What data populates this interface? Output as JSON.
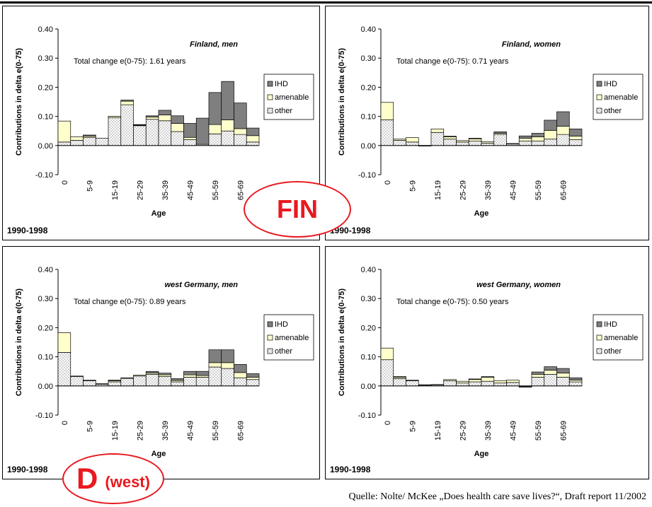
{
  "period_label": "1990-1998",
  "stamps": {
    "fin": "FIN",
    "d_main": "D",
    "d_sub": "(west)"
  },
  "source": "Quelle: Nolte/ McKee „Does health care save lives?“, Draft report 11/2002",
  "colors": {
    "ihd": "#7f7f7f",
    "amenable": "#ffffcc",
    "other_dots": "#9a9a9a",
    "stamp": "#e8191f"
  },
  "chart_data": [
    {
      "type": "bar",
      "stacked": true,
      "title": "Finland, men",
      "annotation": "Total change e(0-75): 1.61 years",
      "xlabel": "Age",
      "ylabel": "Contributions in delta e(0-75)",
      "ylim": [
        -0.1,
        0.4
      ],
      "yticks": [
        "-0.10",
        "0.00",
        "0.10",
        "0.20",
        "0.30",
        "0.40"
      ],
      "categories": [
        "0",
        "1-4",
        "5-9",
        "10-14",
        "15-19",
        "20-24",
        "25-29",
        "30-34",
        "35-39",
        "40-44",
        "45-49",
        "50-54",
        "55-59",
        "60-64",
        "65-69",
        "70-74"
      ],
      "tick_labels": [
        "0",
        "",
        "5-9",
        "",
        "15-19",
        "",
        "25-29",
        "",
        "35-39",
        "",
        "45-49",
        "",
        "55-59",
        "",
        "65-69",
        ""
      ],
      "legend": [
        "IHD",
        "amenable",
        "other"
      ],
      "legend_position": "right",
      "series": [
        {
          "name": "other",
          "values": [
            0.012,
            0.018,
            0.028,
            0.025,
            0.1,
            0.14,
            0.068,
            0.09,
            0.085,
            0.048,
            0.02,
            0.01,
            0.04,
            0.05,
            0.038,
            0.012
          ]
        },
        {
          "name": "amenable",
          "values": [
            0.072,
            0.012,
            0.004,
            0.0,
            -0.005,
            0.012,
            0.002,
            0.008,
            0.02,
            0.028,
            0.008,
            -0.006,
            0.032,
            0.038,
            0.02,
            0.022
          ]
        },
        {
          "name": "IHD",
          "values": [
            0.0,
            0.0,
            0.004,
            0.0,
            0.0,
            0.004,
            0.002,
            0.004,
            0.016,
            0.026,
            0.048,
            0.09,
            0.11,
            0.132,
            0.088,
            0.026
          ]
        }
      ]
    },
    {
      "type": "bar",
      "stacked": true,
      "title": "Finland, women",
      "annotation": "Total change e(0-75): 0.71 years",
      "xlabel": "Age",
      "ylabel": "Contributions in delta e(0-75)",
      "ylim": [
        -0.1,
        0.4
      ],
      "yticks": [
        "-0.10",
        "0.00",
        "0.10",
        "0.20",
        "0.30",
        "0.40"
      ],
      "categories": [
        "0",
        "1-4",
        "5-9",
        "10-14",
        "15-19",
        "20-24",
        "25-29",
        "30-34",
        "35-39",
        "40-44",
        "45-49",
        "50-54",
        "55-59",
        "60-64",
        "65-69",
        "70-74"
      ],
      "tick_labels": [
        "0",
        "",
        "5-9",
        "",
        "15-19",
        "",
        "25-29",
        "",
        "35-39",
        "",
        "45-49",
        "",
        "55-59",
        "",
        "65-69",
        ""
      ],
      "legend": [
        "IHD",
        "amenable",
        "other"
      ],
      "legend_position": "right",
      "series": [
        {
          "name": "other",
          "values": [
            0.088,
            0.018,
            0.012,
            -0.002,
            0.045,
            0.022,
            0.012,
            0.015,
            0.008,
            0.038,
            0.005,
            0.015,
            0.015,
            0.022,
            0.038,
            0.02
          ]
        },
        {
          "name": "amenable",
          "values": [
            0.06,
            0.004,
            0.015,
            0.0,
            0.012,
            0.008,
            0.005,
            0.008,
            0.005,
            0.004,
            0.002,
            0.01,
            0.015,
            0.03,
            0.028,
            0.012
          ]
        },
        {
          "name": "IHD",
          "values": [
            0.0,
            0.0,
            0.0,
            0.0,
            0.0,
            0.002,
            0.0,
            0.002,
            0.0,
            0.005,
            0.0,
            0.008,
            0.012,
            0.035,
            0.05,
            0.025
          ]
        }
      ]
    },
    {
      "type": "bar",
      "stacked": true,
      "title": "west Germany, men",
      "annotation": "Total change e(0-75): 0.89 years",
      "xlabel": "Age",
      "ylabel": "Contributions in delta e(0-75)",
      "ylim": [
        -0.1,
        0.4
      ],
      "yticks": [
        "-0.10",
        "0.00",
        "0.10",
        "0.20",
        "0.30",
        "0.40"
      ],
      "categories": [
        "0",
        "1-4",
        "5-9",
        "10-14",
        "15-19",
        "20-24",
        "25-29",
        "30-34",
        "35-39",
        "40-44",
        "45-49",
        "50-54",
        "55-59",
        "60-64",
        "65-69",
        "70-74"
      ],
      "tick_labels": [
        "0",
        "",
        "5-9",
        "",
        "15-19",
        "",
        "25-29",
        "",
        "35-39",
        "",
        "45-49",
        "",
        "55-59",
        "",
        "65-69",
        ""
      ],
      "legend": [
        "IHD",
        "amenable",
        "other"
      ],
      "legend_position": "right",
      "series": [
        {
          "name": "other",
          "values": [
            0.115,
            0.032,
            0.018,
            0.006,
            0.014,
            0.026,
            0.034,
            0.04,
            0.032,
            0.014,
            0.03,
            0.03,
            0.065,
            0.06,
            0.028,
            0.022
          ]
        },
        {
          "name": "amenable",
          "values": [
            0.068,
            0.002,
            0.002,
            0.002,
            0.004,
            0.002,
            0.003,
            0.004,
            0.006,
            0.005,
            0.008,
            0.006,
            0.015,
            0.02,
            0.018,
            0.008
          ]
        },
        {
          "name": "IHD",
          "values": [
            0.0,
            0.0,
            0.0,
            0.0,
            0.002,
            0.0,
            0.0,
            0.006,
            0.006,
            0.006,
            0.012,
            0.014,
            0.044,
            0.044,
            0.028,
            0.012
          ]
        }
      ]
    },
    {
      "type": "bar",
      "stacked": true,
      "title": "west Germany, women",
      "annotation": "Total change e(0-75): 0.50 years",
      "xlabel": "Age",
      "ylabel": "Contributions in delta e(0-75)",
      "ylim": [
        -0.1,
        0.4
      ],
      "yticks": [
        "-0.10",
        "0.00",
        "0.10",
        "0.20",
        "0.30",
        "0.40"
      ],
      "categories": [
        "0",
        "1-4",
        "5-9",
        "10-14",
        "15-19",
        "20-24",
        "25-29",
        "30-34",
        "35-39",
        "40-44",
        "45-49",
        "50-54",
        "55-59",
        "60-64",
        "65-69",
        "70-74"
      ],
      "tick_labels": [
        "0",
        "",
        "5-9",
        "",
        "15-19",
        "",
        "25-29",
        "",
        "35-39",
        "",
        "45-49",
        "",
        "55-59",
        "",
        "65-69",
        ""
      ],
      "legend": [
        "IHD",
        "amenable",
        "other"
      ],
      "legend_position": "right",
      "series": [
        {
          "name": "other",
          "values": [
            0.09,
            0.025,
            0.018,
            0.003,
            0.004,
            0.018,
            0.01,
            0.014,
            0.016,
            0.01,
            0.012,
            -0.004,
            0.03,
            0.04,
            0.03,
            0.014
          ]
        },
        {
          "name": "amenable",
          "values": [
            0.04,
            0.005,
            0.002,
            0.001,
            0.001,
            0.004,
            0.006,
            0.008,
            0.014,
            0.008,
            0.008,
            0.002,
            0.01,
            0.014,
            0.014,
            0.006
          ]
        },
        {
          "name": "IHD",
          "values": [
            0.0,
            0.002,
            0.0,
            0.0,
            0.0,
            0.0,
            0.0,
            0.002,
            0.002,
            0.0,
            0.0,
            0.0,
            0.008,
            0.012,
            0.016,
            0.008
          ]
        }
      ]
    }
  ]
}
